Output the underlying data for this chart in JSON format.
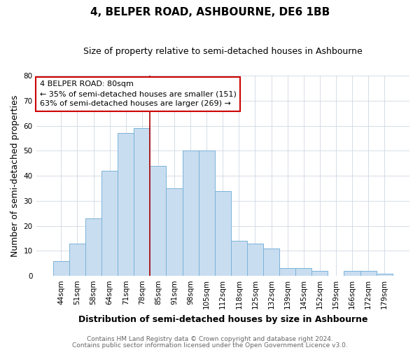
{
  "title": "4, BELPER ROAD, ASHBOURNE, DE6 1BB",
  "subtitle": "Size of property relative to semi-detached houses in Ashbourne",
  "xlabel": "Distribution of semi-detached houses by size in Ashbourne",
  "ylabel": "Number of semi-detached properties",
  "footer_line1": "Contains HM Land Registry data © Crown copyright and database right 2024.",
  "footer_line2": "Contains public sector information licensed under the Open Government Licence v3.0.",
  "bar_labels": [
    "44sqm",
    "51sqm",
    "58sqm",
    "64sqm",
    "71sqm",
    "78sqm",
    "85sqm",
    "91sqm",
    "98sqm",
    "105sqm",
    "112sqm",
    "118sqm",
    "125sqm",
    "132sqm",
    "139sqm",
    "145sqm",
    "152sqm",
    "159sqm",
    "166sqm",
    "172sqm",
    "179sqm"
  ],
  "bar_values": [
    6,
    13,
    23,
    42,
    57,
    59,
    44,
    35,
    50,
    50,
    34,
    14,
    13,
    11,
    3,
    3,
    2,
    0,
    2,
    2,
    1
  ],
  "bar_color": "#c9ddf0",
  "bar_edge_color": "#7ab3d9",
  "vline_index": 5,
  "vline_color": "#aa0000",
  "ylim": [
    0,
    80
  ],
  "yticks": [
    0,
    10,
    20,
    30,
    40,
    50,
    60,
    70,
    80
  ],
  "annotation_title": "4 BELPER ROAD: 80sqm",
  "annotation_line1": "← 35% of semi-detached houses are smaller (151)",
  "annotation_line2": "63% of semi-detached houses are larger (269) →",
  "annotation_box_facecolor": "#ffffff",
  "annotation_box_edgecolor": "#cc0000",
  "background_color": "#ffffff",
  "grid_color": "#d0d8e4",
  "title_fontsize": 11,
  "subtitle_fontsize": 9,
  "axis_label_fontsize": 9,
  "tick_fontsize": 7.5,
  "annotation_fontsize": 8,
  "footer_fontsize": 6.5
}
